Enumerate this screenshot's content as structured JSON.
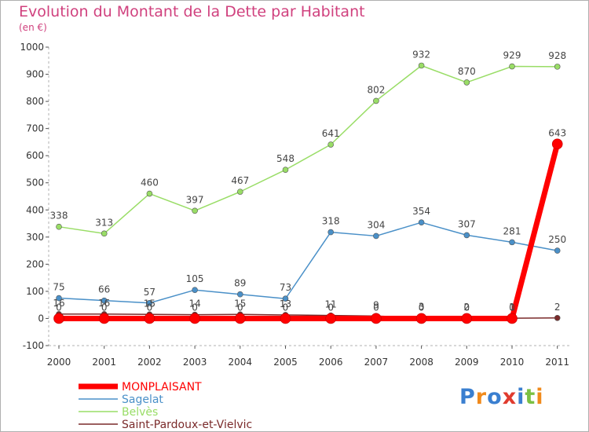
{
  "chart_data": {
    "type": "line",
    "title": "Evolution du Montant de la Dette par Habitant",
    "subtitle": "(en €)",
    "x": [
      "2000",
      "2001",
      "2002",
      "2003",
      "2004",
      "2005",
      "2006",
      "2007",
      "2008",
      "2009",
      "2010",
      "2011"
    ],
    "ylim": [
      -100,
      1000
    ],
    "yticks": [
      -100,
      0,
      100,
      200,
      300,
      400,
      500,
      600,
      700,
      800,
      900,
      1000
    ],
    "grid": false,
    "legend_position": "bottom-left",
    "series": [
      {
        "name": "MONPLAISANT",
        "color": "#ff0000",
        "values": [
          0,
          0,
          0,
          0,
          0,
          0,
          0,
          0,
          0,
          0,
          0,
          643
        ],
        "labels": [
          "0",
          "0",
          "0",
          "0",
          "0",
          "0",
          "0",
          "0",
          "0",
          "0",
          "0",
          "643"
        ]
      },
      {
        "name": "Sagelat",
        "color": "#4a90c8",
        "values": [
          75,
          66,
          57,
          105,
          89,
          73,
          318,
          304,
          354,
          307,
          281,
          250
        ],
        "labels": [
          "75",
          "66",
          "57",
          "105",
          "89",
          "73",
          "318",
          "304",
          "354",
          "307",
          "281",
          "250"
        ]
      },
      {
        "name": "Belvès",
        "color": "#99dd66",
        "values": [
          338,
          313,
          460,
          397,
          467,
          548,
          641,
          802,
          932,
          870,
          929,
          928
        ],
        "labels": [
          "338",
          "313",
          "460",
          "397",
          "467",
          "548",
          "641",
          "802",
          "932",
          "870",
          "929",
          "928"
        ]
      },
      {
        "name": "Saint-Pardoux-et-Vielvic",
        "color": "#7a2a2a",
        "values": [
          16,
          16,
          15,
          14,
          15,
          13,
          11,
          9,
          3,
          2,
          1,
          2
        ],
        "labels": [
          "16",
          "16",
          "15",
          "14",
          "15",
          "13",
          "11",
          "9",
          "3",
          "2",
          "1",
          "2"
        ]
      }
    ]
  },
  "logo": {
    "text": "Proxiti",
    "letters": [
      {
        "ch": "P",
        "color": "#3a7fd0"
      },
      {
        "ch": "r",
        "color": "#f08a1c"
      },
      {
        "ch": "o",
        "color": "#3a7fd0"
      },
      {
        "ch": "x",
        "color": "#e03b2e"
      },
      {
        "ch": "i",
        "color": "#3a7fd0"
      },
      {
        "ch": "t",
        "color": "#7bc043"
      },
      {
        "ch": "i",
        "color": "#f08a1c"
      }
    ]
  }
}
